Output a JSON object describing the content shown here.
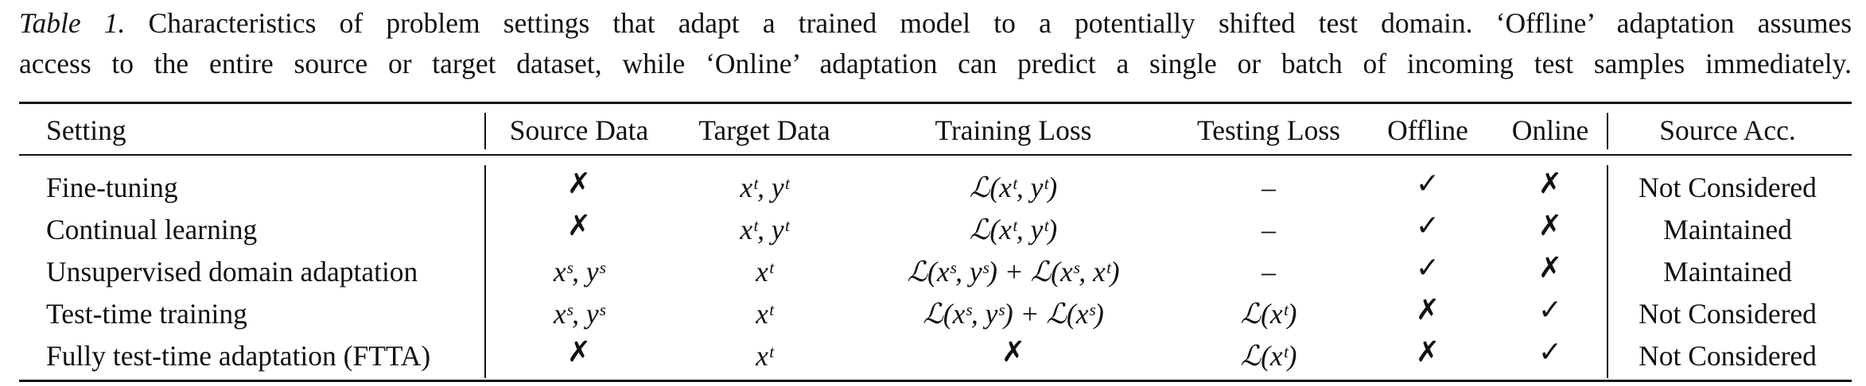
{
  "caption": {
    "lead": "Table 1.",
    "line1_rest": " Characteristics of problem settings that adapt a trained model to a potentially shifted test domain. ‘Offline’ adaptation assumes",
    "line2": "access to the entire source or target dataset, while ‘Online’ adaptation can predict a single or batch of incoming test samples immediately."
  },
  "table": {
    "headers": [
      "Setting",
      "Source Data",
      "Target Data",
      "Training Loss",
      "Testing Loss",
      "Offline",
      "Online",
      "Source Acc."
    ],
    "rows": [
      [
        "Fine-tuning",
        "✗",
        "xᵗ, yᵗ",
        "ℒ(xᵗ, yᵗ)",
        "–",
        "✓",
        "✗",
        "Not Considered"
      ],
      [
        "Continual learning",
        "✗",
        "xᵗ, yᵗ",
        "ℒ(xᵗ, yᵗ)",
        "–",
        "✓",
        "✗",
        "Maintained"
      ],
      [
        "Unsupervised domain adaptation",
        "xˢ, yˢ",
        "xᵗ",
        "ℒ(xˢ, yˢ) + ℒ(xˢ, xᵗ)",
        "–",
        "✓",
        "✗",
        "Maintained"
      ],
      [
        "Test-time training",
        "xˢ, yˢ",
        "xᵗ",
        "ℒ(xˢ, yˢ) + ℒ(xˢ)",
        "ℒ(xᵗ)",
        "✗",
        "✓",
        "Not Considered"
      ],
      [
        "Fully test-time adaptation (FTTA)",
        "✗",
        "xᵗ",
        "✗",
        "ℒ(xᵗ)",
        "✗",
        "✓",
        "Not Considered"
      ]
    ]
  }
}
